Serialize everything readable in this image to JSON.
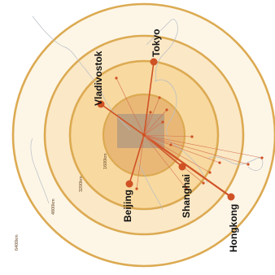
{
  "colors": {
    "background": "#ffffff",
    "ring_outer": "#fdf6e7",
    "ring_2": "#fbe8c7",
    "ring_3": "#f8d9a0",
    "ring_inner": "#e9b877",
    "ring_stroke": "#dcaa52",
    "core": "#b99d7e",
    "coastline": "#b8bec6",
    "route": "#cf5225",
    "route_thin": "#d46f4d"
  },
  "rings": [
    {
      "label": "6400km",
      "radius_km": 6400
    },
    {
      "label": "4800km",
      "radius_km": 4800
    },
    {
      "label": "3200km",
      "radius_km": 3200
    },
    {
      "label": "1600km",
      "radius_km": 1600
    }
  ],
  "hub": {
    "name": "",
    "marker": "center-point"
  },
  "cities": [
    {
      "name": "Tokyo",
      "label": "Tokyo"
    },
    {
      "name": "Vladivostok",
      "label": "Vladivostok"
    },
    {
      "name": "Beijing",
      "label": "Beijing"
    },
    {
      "name": "Shanghai",
      "label": "Shanghai"
    },
    {
      "name": "Hongkong",
      "label": "Hongkong"
    }
  ],
  "minor_destinations": 14
}
